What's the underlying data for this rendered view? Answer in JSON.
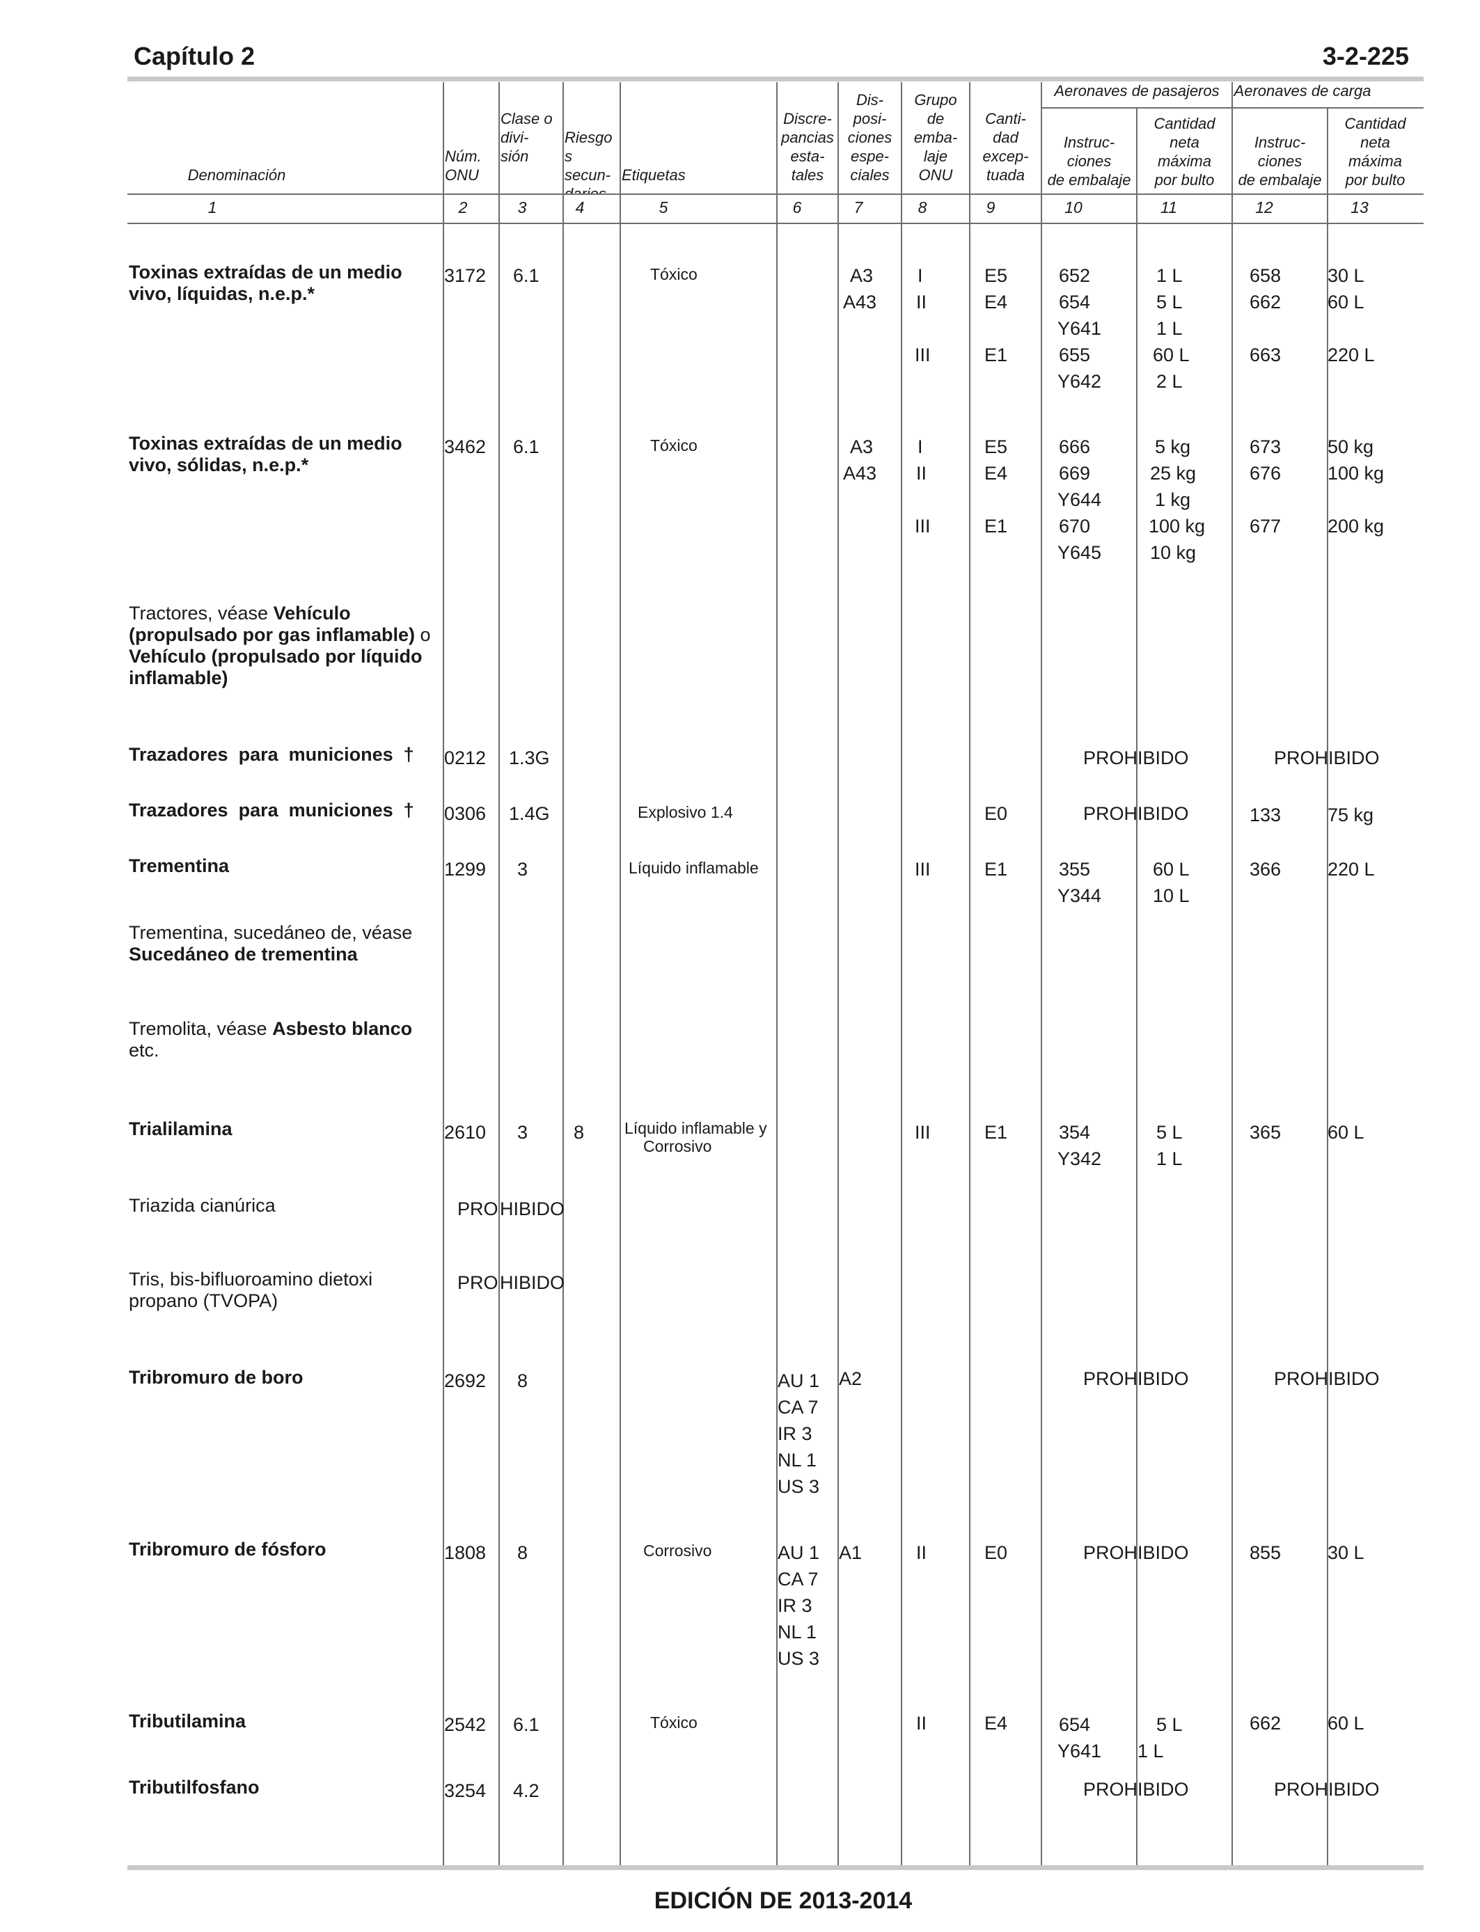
{
  "header": {
    "chapter": "Capítulo 2",
    "page": "3-2-225"
  },
  "columns": {
    "denominacion": "Denominación",
    "num_onu": [
      "Núm.",
      "ONU"
    ],
    "clase": [
      "Clase o",
      "divi-",
      "sión"
    ],
    "riesgo": [
      "Riesgo",
      "s",
      "secun-",
      "darios"
    ],
    "etiquetas": "Etiquetas",
    "discrepancias": [
      "Discre-",
      "pancias",
      "esta-",
      "tales"
    ],
    "disposiciones": [
      "Dis-",
      "posi-",
      "ciones",
      "espe-",
      "ciales"
    ],
    "grupo": [
      "Grupo",
      "de",
      "emba-",
      "laje",
      "ONU"
    ],
    "cantidad_exceptuada": [
      "Canti-",
      "dad",
      "excep-",
      "tuada"
    ],
    "pasajeros_group": "Aeronaves de pasajeros",
    "carga_group": "Aeronaves de carga",
    "instrucciones": [
      "Instruc-",
      "ciones",
      "de embalaje"
    ],
    "cantidad_neta": [
      "Cantidad",
      "neta",
      "máxima",
      "por bulto"
    ],
    "numbers": [
      "1",
      "2",
      "3",
      "4",
      "5",
      "6",
      "7",
      "8",
      "9",
      "10",
      "11",
      "12",
      "13"
    ]
  },
  "rows": {
    "r1": {
      "name": [
        "Toxinas extraídas de un medio",
        "vivo, líquidas, n.e.p.*"
      ],
      "un": "3172",
      "clase": "6.1",
      "etiqueta": "Tóxico",
      "disp": [
        "A3",
        "A43"
      ],
      "grupo": [
        "I",
        "II",
        "III"
      ],
      "exc": [
        "E5",
        "E4",
        "E1"
      ],
      "pax_inst": [
        "652",
        "654",
        "Y641",
        "655",
        "Y642"
      ],
      "pax_qty": [
        "1 L",
        "5 L",
        "1 L",
        "60 L",
        "2 L"
      ],
      "cargo_inst": [
        "658",
        "662",
        "663"
      ],
      "cargo_qty": [
        "30 L",
        "60 L",
        "220 L"
      ]
    },
    "r2": {
      "name": [
        "Toxinas extraídas de un medio",
        "vivo, sólidas, n.e.p.*"
      ],
      "un": "3462",
      "clase": "6.1",
      "etiqueta": "Tóxico",
      "disp": [
        "A3",
        "A43"
      ],
      "grupo": [
        "I",
        "II",
        "III"
      ],
      "exc": [
        "E5",
        "E4",
        "E1"
      ],
      "pax_inst": [
        "666",
        "669",
        "Y644",
        "670",
        "Y645"
      ],
      "pax_qty": [
        "5 kg",
        "25 kg",
        "1 kg",
        "100 kg",
        "10 kg"
      ],
      "cargo_inst": [
        "673",
        "676",
        "677"
      ],
      "cargo_qty": [
        "50 kg",
        "100 kg",
        "200 kg"
      ]
    },
    "r3": {
      "pre1": "Tractores, véase ",
      "b1": "Vehículo",
      "b2": "(propulsado por gas inflamable)",
      "mid": " o",
      "b3": "Vehículo (propulsado por líquido",
      "b4": "inflamable)"
    },
    "r4": {
      "name": "Trazadores  para  municiones  †",
      "un": "0212",
      "clase": "1.3G",
      "pax_pro": [
        "PROH",
        "IBIDO"
      ],
      "cargo_pro": [
        "PROH",
        "IBIDO"
      ]
    },
    "r5": {
      "name": "Trazadores  para  municiones  †",
      "un": "0306",
      "clase": "1.4G",
      "etiqueta": "Explosivo 1.4",
      "exc": "E0",
      "pax_pro": [
        "PROH",
        "IBIDO"
      ],
      "cargo_inst": "133",
      "cargo_qty": "75 kg"
    },
    "r6": {
      "name": "Trementina",
      "un": "1299",
      "clase": "3",
      "etiqueta": "Líquido inflamable",
      "grupo": "III",
      "exc": "E1",
      "pax_inst": [
        "355",
        "Y344"
      ],
      "pax_qty": [
        "60 L",
        "10 L"
      ],
      "cargo_inst": "366",
      "cargo_qty": "220 L"
    },
    "r7": {
      "pre": "Trementina, sucedáneo de, véase",
      "bold": "Sucedáneo de trementina"
    },
    "r8": {
      "pre": "Tremolita, véase ",
      "bold": "Asbesto blanco",
      "post": "etc."
    },
    "r9": {
      "name": "Trialilamina",
      "un": "2610",
      "clase": "3",
      "riesgo": "8",
      "etiqueta": [
        "Líquido inflamable y",
        "Corrosivo"
      ],
      "grupo": "III",
      "exc": "E1",
      "pax_inst": [
        "354",
        "Y342"
      ],
      "pax_qty": [
        "5 L",
        "1 L"
      ],
      "cargo_inst": "365",
      "cargo_qty": "60 L"
    },
    "r10": {
      "name": "Triazida cianúrica",
      "pro": [
        "PRO",
        "HIBIDO"
      ]
    },
    "r11": {
      "name": [
        "Tris, bis-bifluoroamino dietoxi",
        "propano (TVOPA)"
      ],
      "pro": [
        "PRO",
        "HIBIDO"
      ]
    },
    "r12": {
      "name": "Tribromuro de boro",
      "un": "2692",
      "clase": "8",
      "disc": [
        "AU 1",
        "CA 7",
        "IR 3",
        "NL 1",
        "US 3"
      ],
      "disp": "A2",
      "pax_pro": [
        "PROH",
        "IBIDO"
      ],
      "cargo_pro": [
        "PROH",
        "IBIDO"
      ]
    },
    "r13": {
      "name": "Tribromuro de fósforo",
      "un": "1808",
      "clase": "8",
      "etiqueta": "Corrosivo",
      "disc": [
        "AU 1",
        "CA 7",
        "IR 3",
        "NL 1",
        "US 3"
      ],
      "disp": "A1",
      "grupo": "II",
      "exc": "E0",
      "pax_pro": [
        "PROH",
        "IBIDO"
      ],
      "cargo_inst": "855",
      "cargo_qty": "30 L"
    },
    "r14": {
      "name": "Tributilamina",
      "un": "2542",
      "clase": "6.1",
      "etiqueta": "Tóxico",
      "grupo": "II",
      "exc": "E4",
      "pax_inst": [
        "654",
        "Y641"
      ],
      "pax_qty": [
        "5 L",
        "1 L"
      ],
      "cargo_inst": "662",
      "cargo_qty": "60 L"
    },
    "r15": {
      "name": "Tributilfosfano",
      "un": "3254",
      "clase": "4.2",
      "pax_pro": [
        "PROH",
        "IBIDO"
      ],
      "cargo_pro": [
        "PROH",
        "IBIDO"
      ]
    }
  },
  "footer": "EDICIÓN DE 2013-2014"
}
